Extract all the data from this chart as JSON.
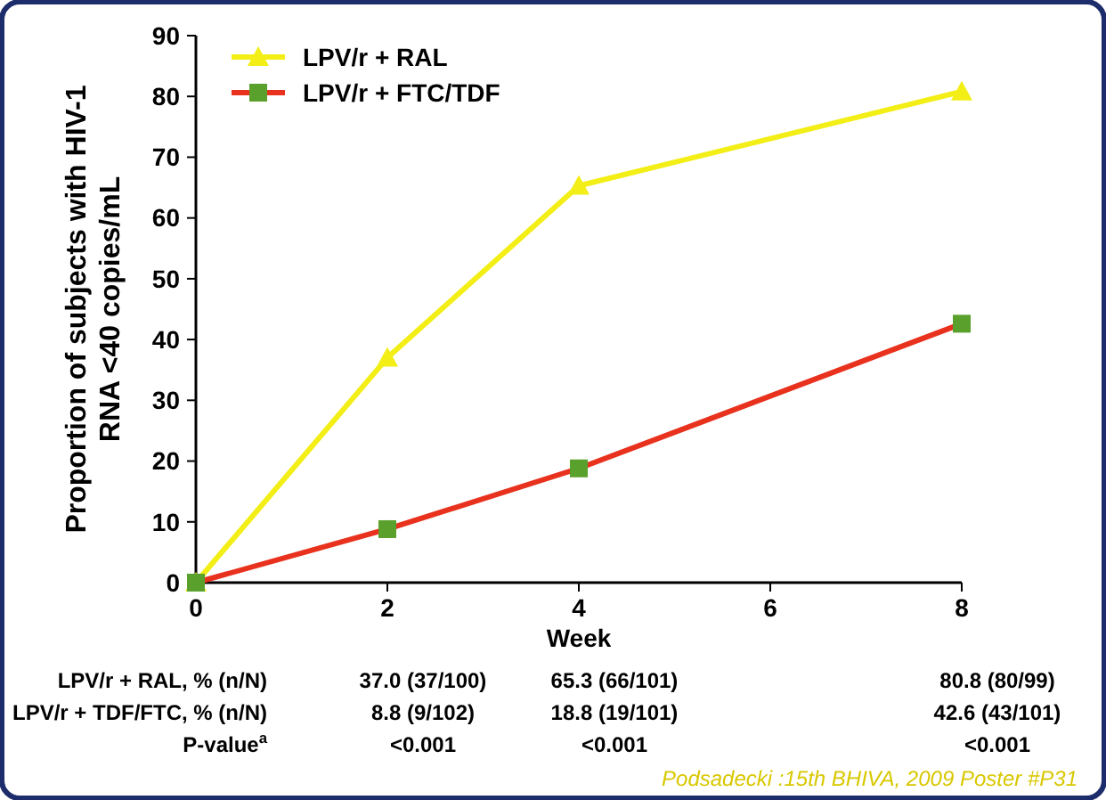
{
  "chart_data": {
    "type": "line",
    "xlabel": "Week",
    "ylabel": "Proportion of subjects with HIV-1\nRNA <40 copies/mL",
    "x": [
      0,
      2,
      4,
      8
    ],
    "xlim": [
      0,
      8
    ],
    "xticks": [
      0,
      2,
      4,
      6,
      8
    ],
    "ylim": [
      0,
      90
    ],
    "yticks": [
      0,
      10,
      20,
      30,
      40,
      50,
      60,
      70,
      80,
      90
    ],
    "legend": "top left",
    "grid": false,
    "series": [
      {
        "name": "LPV/r + RAL",
        "color": "#f2ee16",
        "marker": "triangle",
        "values": [
          0,
          37.0,
          65.3,
          80.8
        ]
      },
      {
        "name": "LPV/r + FTC/TDF",
        "color": "#e8321e",
        "marker": "square",
        "values": [
          0,
          8.8,
          18.8,
          42.6
        ]
      }
    ],
    "annotations": [
      "LPV/r + RAL, % (n/N)",
      "37.0 (37/100)",
      "65.3 (66/101)",
      "80.8 (80/99)",
      "LPV/r + TDF/FTC, % (n/N)",
      "8.8 (9/102)",
      "18.8 (19/101)",
      "42.6 (43/101)",
      "P-value$^{a}$",
      "<0.001",
      "<0.001",
      "<0.001",
      "Podsadecki :15th BHIVA, 2009 Poster #P31"
    ]
  }
}
